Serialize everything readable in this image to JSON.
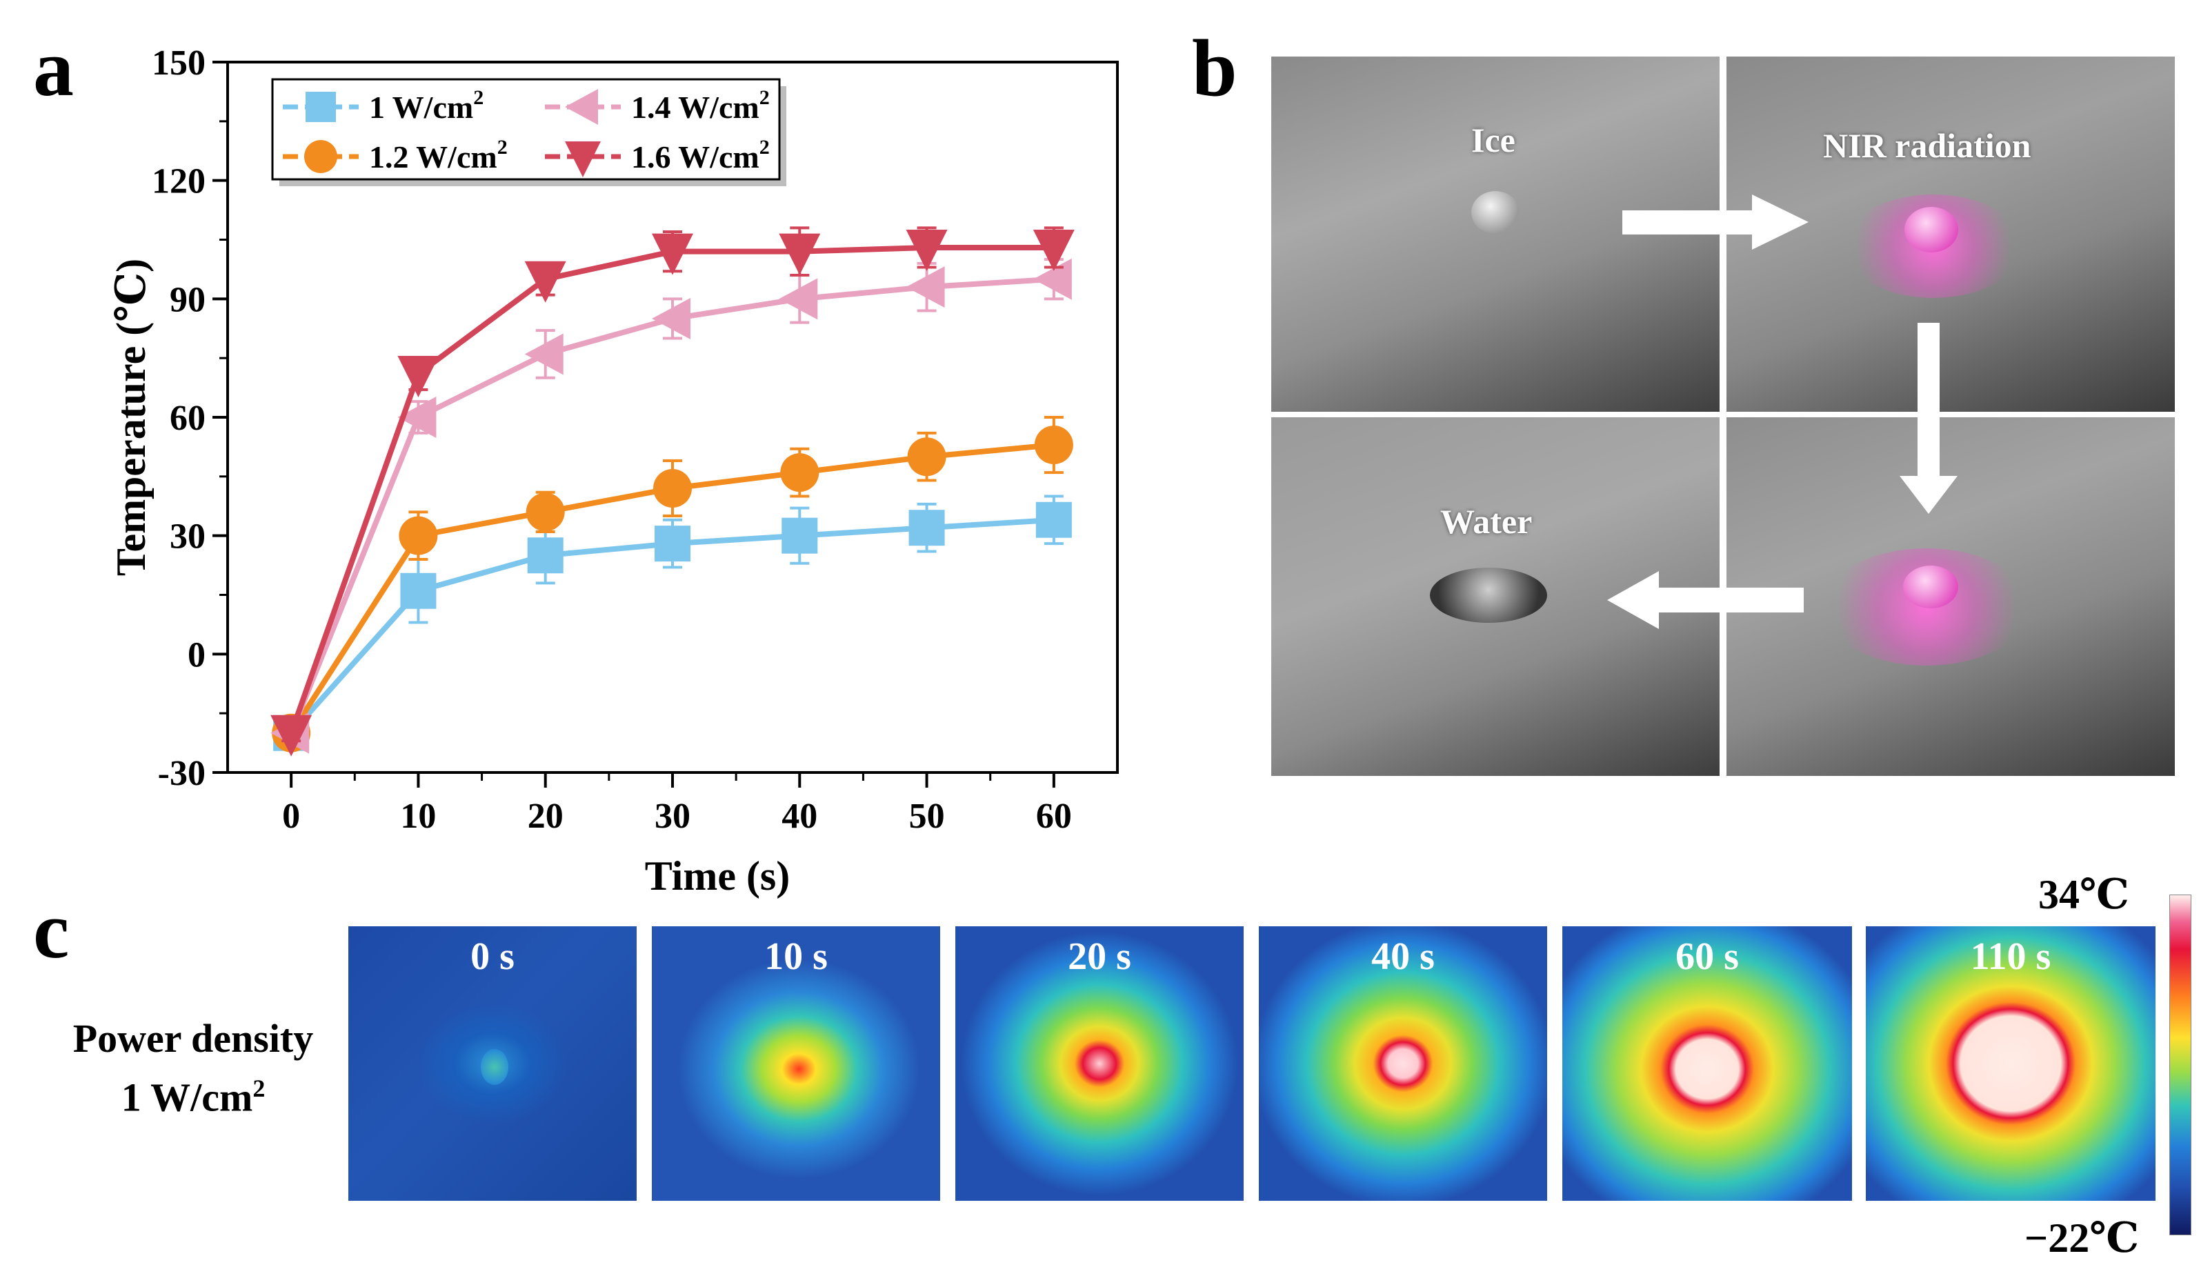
{
  "panels": {
    "a": "a",
    "b": "b",
    "c": "c"
  },
  "chart_data": {
    "type": "line",
    "xlabel": "Time (s)",
    "ylabel": "Temperature (℃)",
    "xlim": [
      -5,
      65
    ],
    "ylim": [
      -30,
      150
    ],
    "xticks": [
      0,
      10,
      20,
      30,
      40,
      50,
      60
    ],
    "yticks": [
      -30,
      0,
      30,
      60,
      90,
      120,
      150
    ],
    "x": [
      0,
      10,
      20,
      30,
      40,
      50,
      60
    ],
    "series": [
      {
        "name": "1 W/cm",
        "sup": "2",
        "color": "#7cc6ee",
        "marker": "square",
        "values": [
          -20,
          16,
          25,
          28,
          30,
          32,
          34
        ],
        "errors": [
          2,
          8,
          7,
          6,
          7,
          6,
          6
        ]
      },
      {
        "name": "1.2 W/cm",
        "sup": "2",
        "color": "#f28c1e",
        "marker": "circle",
        "values": [
          -20,
          30,
          36,
          42,
          46,
          50,
          53
        ],
        "errors": [
          2,
          6,
          5,
          7,
          6,
          6,
          7
        ]
      },
      {
        "name": "1.4 W/cm",
        "sup": "2",
        "color": "#e8a2c0",
        "marker": "triangle-left",
        "values": [
          -20,
          60,
          76,
          85,
          90,
          93,
          95
        ],
        "errors": [
          2,
          4,
          6,
          5,
          6,
          6,
          5
        ]
      },
      {
        "name": "1.6 W/cm",
        "sup": "2",
        "color": "#d24457",
        "marker": "triangle-down",
        "values": [
          -20,
          71,
          95,
          102,
          102,
          103,
          103
        ],
        "errors": [
          2,
          4,
          4,
          5,
          6,
          5,
          5
        ]
      }
    ],
    "legend_position": "top-left"
  },
  "photos": {
    "ice": "Ice",
    "nir": "NIR radiation",
    "water": "Water"
  },
  "thermal": {
    "row_label_line1": "Power density",
    "row_label_line2": "1 W/cm",
    "row_label_sup": "2",
    "frames": [
      "0 s",
      "10 s",
      "20 s",
      "40 s",
      "60 s",
      "110 s"
    ],
    "colorbar_max": "34℃",
    "colorbar_min": "−22℃"
  }
}
